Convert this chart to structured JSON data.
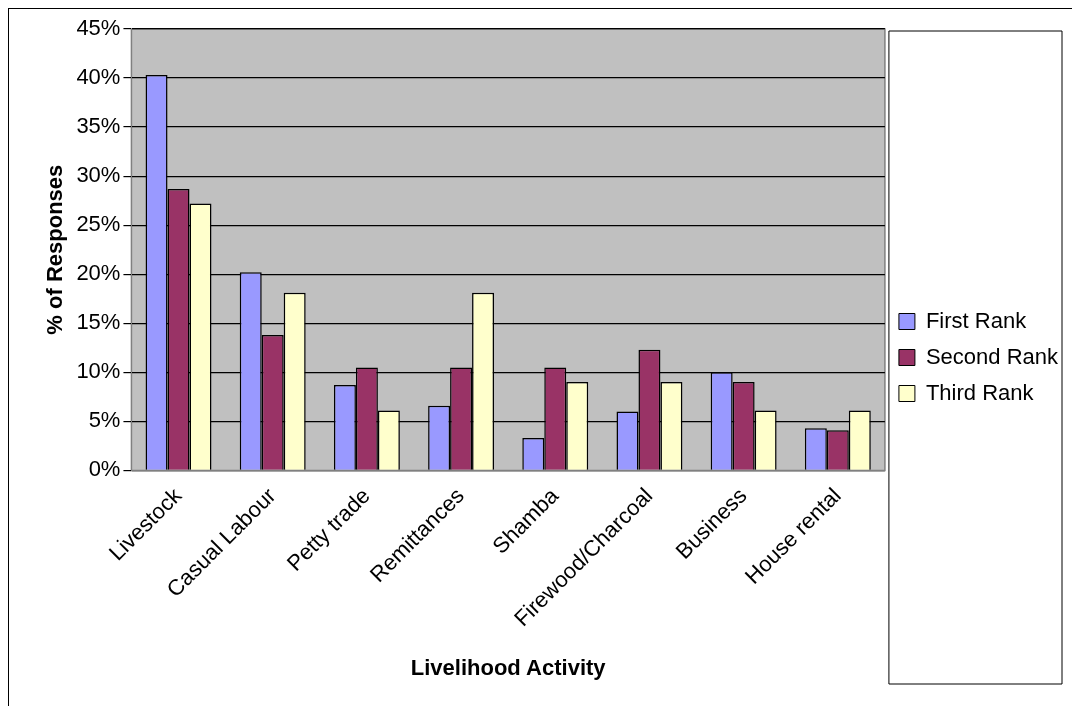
{
  "chart_data": {
    "type": "bar",
    "xlabel": "Livelihood Activity",
    "ylabel": "% of Responses",
    "categories": [
      "Livestock",
      "Casual Labour",
      "Petty trade",
      "Remittances",
      "Shamba",
      "Firewood/Charcoal",
      "Business",
      "House rental"
    ],
    "series": [
      {
        "name": "First Rank",
        "color": "#9999ff",
        "values": [
          40.3,
          20.2,
          8.7,
          6.6,
          3.3,
          6.0,
          10.0,
          4.3
        ]
      },
      {
        "name": "Second Rank",
        "color": "#993366",
        "values": [
          28.7,
          13.8,
          10.5,
          10.5,
          10.5,
          12.3,
          9.0,
          4.1
        ]
      },
      {
        "name": "Third Rank",
        "color": "#ffffcc",
        "values": [
          27.2,
          18.1,
          6.1,
          18.1,
          9.0,
          9.0,
          6.1,
          6.1
        ]
      }
    ],
    "ylim": [
      0,
      45
    ],
    "yticks": [
      {
        "value": 0,
        "label": "0%"
      },
      {
        "value": 5,
        "label": "5%"
      },
      {
        "value": 10,
        "label": "10%"
      },
      {
        "value": 15,
        "label": "15%"
      },
      {
        "value": 20,
        "label": "20%"
      },
      {
        "value": 25,
        "label": "25%"
      },
      {
        "value": 30,
        "label": "30%"
      },
      {
        "value": 35,
        "label": "35%"
      },
      {
        "value": 40,
        "label": "40%"
      },
      {
        "value": 45,
        "label": "45%"
      }
    ],
    "grid": "y",
    "legend": "right"
  }
}
